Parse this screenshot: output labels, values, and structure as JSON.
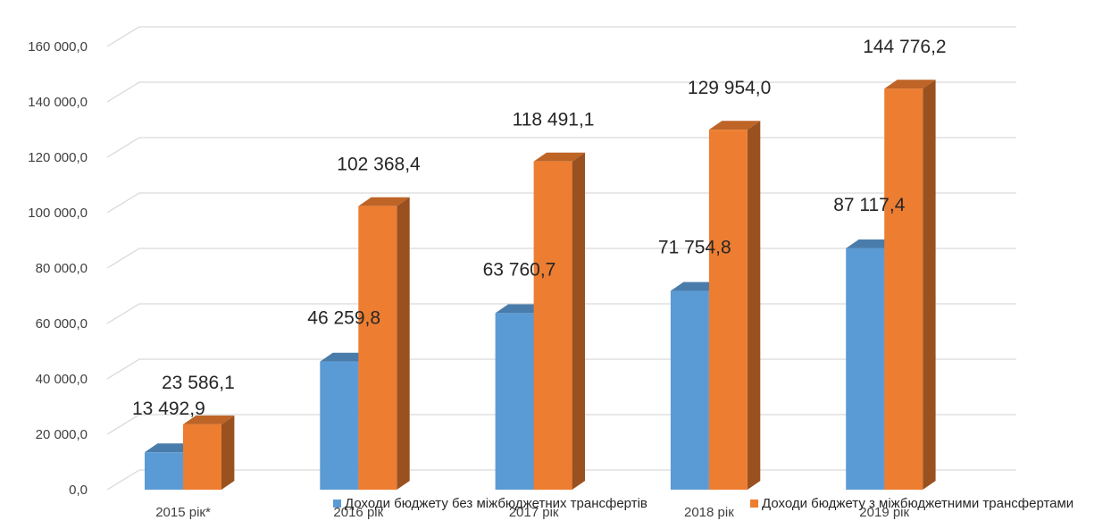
{
  "chart_data": {
    "type": "bar",
    "title": "",
    "xlabel": "",
    "ylabel": "",
    "ylim": [
      0,
      160000
    ],
    "y_ticks": [
      "0,0",
      "20 000,0",
      "40 000,0",
      "60 000,0",
      "80 000,0",
      "100 000,0",
      "120 000,0",
      "140 000,0",
      "160 000,0"
    ],
    "categories": [
      "2015 рік*",
      "2016 рік",
      "2017 рік",
      "2018 рік",
      "2019 рік"
    ],
    "series": [
      {
        "name": "Доходи бюджету без міжбюджетних трансфертів",
        "values": [
          13492.9,
          46259.8,
          63760.7,
          71754.8,
          87117.4
        ],
        "labels": [
          "13 492,9",
          "46 259,8",
          "63 760,7",
          "71 754,8",
          "87 117,4"
        ],
        "color": "#5B9BD5"
      },
      {
        "name": "Доходи бюджету з міжбюджетними трансфертами",
        "values": [
          23586.1,
          102368.4,
          118491.1,
          129954.0,
          144776.2
        ],
        "labels": [
          "23 586,1",
          "102 368,4",
          "118 491,1",
          "129 954,0",
          "144 776,2"
        ],
        "color": "#ED7D31"
      }
    ],
    "grid": true,
    "legend": "bottom"
  }
}
